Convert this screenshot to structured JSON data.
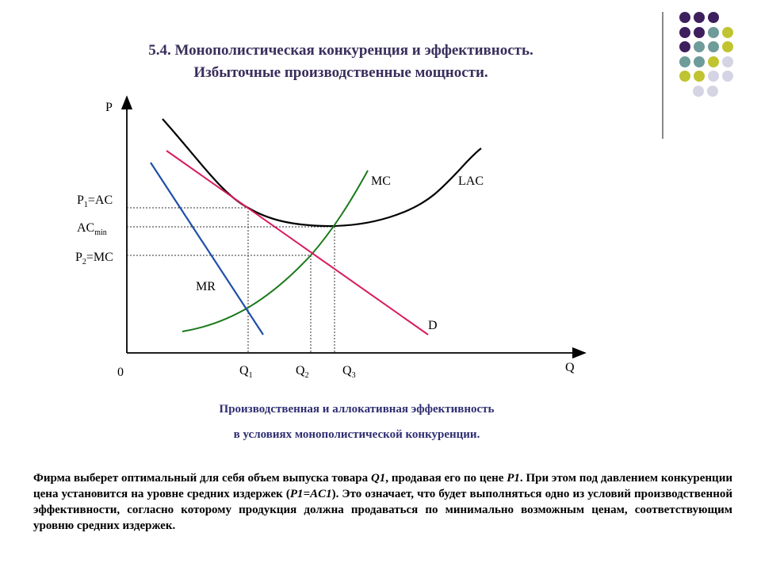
{
  "title": {
    "line1": "5.4. Монополистическая конкуренция и эффективность.",
    "line2": "Избыточные производственные мощности."
  },
  "decoration": {
    "colors": {
      "purple": "#3d1f5e",
      "teal": "#6e9c9a",
      "olive": "#c0c430",
      "lavender": "#d4d4e4"
    },
    "dot_grid": [
      [
        "purple",
        "purple",
        "purple"
      ],
      [
        "purple",
        "purple",
        "teal",
        "olive"
      ],
      [
        "purple",
        "teal",
        "teal",
        "olive"
      ],
      [
        "teal",
        "teal",
        "olive",
        "lavender"
      ],
      [
        "olive",
        "olive",
        "lavender",
        "lavender"
      ],
      [
        "lavender",
        "lavender"
      ]
    ]
  },
  "diagram": {
    "y_axis_label": "P",
    "x_axis_label": "Q",
    "origin_label": "0",
    "price_labels": {
      "p1": {
        "main": "P",
        "sub": "1",
        "rest": "=AC"
      },
      "acmin": {
        "main": "AC",
        "sub": "min"
      },
      "p2": {
        "main": "P",
        "sub": "2",
        "rest": "=MC"
      }
    },
    "quantity_labels": [
      {
        "main": "Q",
        "sub": "1"
      },
      {
        "main": "Q",
        "sub": "2"
      },
      {
        "main": "Q",
        "sub": "3"
      }
    ],
    "curves": {
      "lac": {
        "label": "LAC",
        "color": "#000000"
      },
      "mc": {
        "label": "MC",
        "color": "#1a7a1a"
      },
      "mr": {
        "label": "MR",
        "color": "#1f4fa8"
      },
      "d": {
        "label": "D",
        "color": "#d81b60"
      }
    }
  },
  "caption": {
    "line1": "Производственная и аллокативная эффективность",
    "line2": "в условиях монополистической конкуренции."
  },
  "paragraph": {
    "part1": "Фирма выберет оптимальный для себя объем выпуска товара ",
    "q1": "Q1",
    "part2": ", продавая его по цене ",
    "p1": "P1",
    "part3": ". При этом под давлением конкуренции цена установится на уровне средних издержек (",
    "p1ac1": "P1=AC1",
    "part4": "). Это означает, что будет выполняться одно из условий производственной эффективности, согласно которому продукция должна продаваться по минимально возможным ценам, соответствующим уровню средних издержек."
  }
}
